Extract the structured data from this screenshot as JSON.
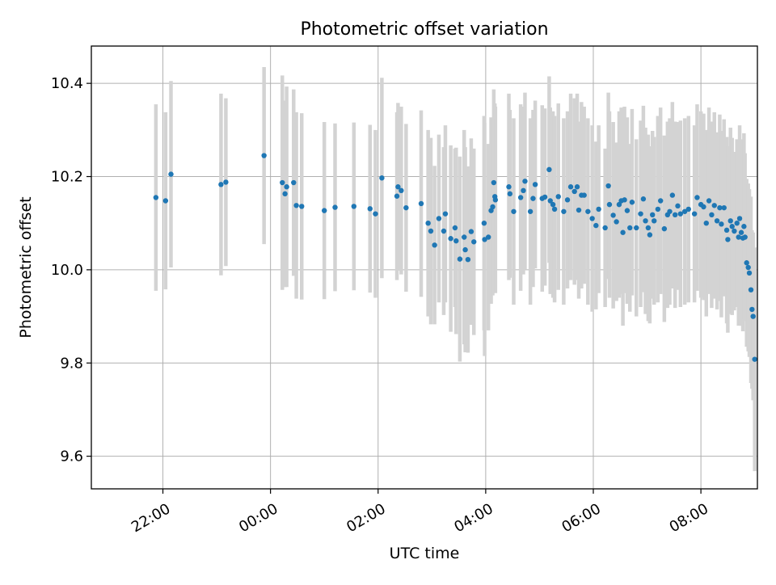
{
  "chart_data": {
    "type": "scatter",
    "title": "Photometric offset variation",
    "xlabel": "UTC time",
    "ylabel": "Photometric offset",
    "x_unit": "hours (UTC, continuing past midnight)",
    "xlim": [
      20.67,
      33.05
    ],
    "ylim": [
      9.53,
      10.48
    ],
    "x_ticks": [
      {
        "value": 22,
        "label": "22:00"
      },
      {
        "value": 24,
        "label": "00:00"
      },
      {
        "value": 26,
        "label": "02:00"
      },
      {
        "value": 28,
        "label": "04:00"
      },
      {
        "value": 30,
        "label": "06:00"
      },
      {
        "value": 32,
        "label": "08:00"
      }
    ],
    "y_ticks": [
      {
        "value": 9.6,
        "label": "9.6"
      },
      {
        "value": 9.8,
        "label": "9.8"
      },
      {
        "value": 10.0,
        "label": "10.0"
      },
      {
        "value": 10.2,
        "label": "10.2"
      },
      {
        "value": 10.4,
        "label": "10.4"
      }
    ],
    "grid": true,
    "colors": {
      "points": "#1f77b4",
      "errorbars": "#d3d3d3",
      "grid": "#b0b0b0"
    },
    "points": [
      [
        21.87,
        10.155,
        0.2
      ],
      [
        22.05,
        10.148,
        0.19
      ],
      [
        22.15,
        10.205,
        0.2
      ],
      [
        23.08,
        10.183,
        0.195
      ],
      [
        23.17,
        10.188,
        0.18
      ],
      [
        23.88,
        10.245,
        0.19
      ],
      [
        24.22,
        10.187,
        0.23
      ],
      [
        24.3,
        10.178,
        0.215
      ],
      [
        24.27,
        10.163,
        0.2
      ],
      [
        24.43,
        10.187,
        0.2
      ],
      [
        24.48,
        10.138,
        0.2
      ],
      [
        24.58,
        10.136,
        0.2
      ],
      [
        25.0,
        10.127,
        0.19
      ],
      [
        25.2,
        10.134,
        0.18
      ],
      [
        25.55,
        10.136,
        0.18
      ],
      [
        25.85,
        10.131,
        0.18
      ],
      [
        25.95,
        10.12,
        0.18
      ],
      [
        26.07,
        10.197,
        0.215
      ],
      [
        26.37,
        10.178,
        0.18
      ],
      [
        26.43,
        10.17,
        0.18
      ],
      [
        26.35,
        10.158,
        0.18
      ],
      [
        26.52,
        10.133,
        0.18
      ],
      [
        26.8,
        10.142,
        0.2
      ],
      [
        26.93,
        10.1,
        0.2
      ],
      [
        26.98,
        10.083,
        0.2
      ],
      [
        27.05,
        10.053,
        0.17
      ],
      [
        27.13,
        10.11,
        0.18
      ],
      [
        27.25,
        10.12,
        0.19
      ],
      [
        27.22,
        10.083,
        0.18
      ],
      [
        27.35,
        10.067,
        0.2
      ],
      [
        27.43,
        10.09,
        0.17
      ],
      [
        27.45,
        10.062,
        0.2
      ],
      [
        27.52,
        10.023,
        0.22
      ],
      [
        27.6,
        10.07,
        0.23
      ],
      [
        27.62,
        10.043,
        0.22
      ],
      [
        27.67,
        10.022,
        0.2
      ],
      [
        27.73,
        10.082,
        0.2
      ],
      [
        27.78,
        10.06,
        0.2
      ],
      [
        27.97,
        10.1,
        0.23
      ],
      [
        27.98,
        10.065,
        0.25
      ],
      [
        28.05,
        10.07,
        0.2
      ],
      [
        28.1,
        10.127,
        0.2
      ],
      [
        28.15,
        10.187,
        0.2
      ],
      [
        28.17,
        10.157,
        0.2
      ],
      [
        28.18,
        10.15,
        0.2
      ],
      [
        28.13,
        10.135,
        0.19
      ],
      [
        28.43,
        10.178,
        0.2
      ],
      [
        28.45,
        10.163,
        0.18
      ],
      [
        28.52,
        10.125,
        0.2
      ],
      [
        28.65,
        10.155,
        0.2
      ],
      [
        28.7,
        10.17,
        0.18
      ],
      [
        28.73,
        10.19,
        0.19
      ],
      [
        28.83,
        10.125,
        0.2
      ],
      [
        28.88,
        10.153,
        0.19
      ],
      [
        28.92,
        10.183,
        0.18
      ],
      [
        29.05,
        10.153,
        0.2
      ],
      [
        29.1,
        10.156,
        0.19
      ],
      [
        29.18,
        10.215,
        0.2
      ],
      [
        29.2,
        10.148,
        0.2
      ],
      [
        29.25,
        10.14,
        0.2
      ],
      [
        29.28,
        10.13,
        0.2
      ],
      [
        29.35,
        10.157,
        0.2
      ],
      [
        29.45,
        10.125,
        0.2
      ],
      [
        29.52,
        10.15,
        0.19
      ],
      [
        29.58,
        10.178,
        0.2
      ],
      [
        29.65,
        10.168,
        0.2
      ],
      [
        29.7,
        10.178,
        0.2
      ],
      [
        29.73,
        10.128,
        0.19
      ],
      [
        29.78,
        10.16,
        0.2
      ],
      [
        29.83,
        10.16,
        0.19
      ],
      [
        29.9,
        10.125,
        0.2
      ],
      [
        29.98,
        10.11,
        0.2
      ],
      [
        30.05,
        10.095,
        0.18
      ],
      [
        30.1,
        10.13,
        0.18
      ],
      [
        30.22,
        10.09,
        0.17
      ],
      [
        30.28,
        10.18,
        0.2
      ],
      [
        30.3,
        10.14,
        0.2
      ],
      [
        30.37,
        10.117,
        0.2
      ],
      [
        30.43,
        10.103,
        0.17
      ],
      [
        30.48,
        10.14,
        0.2
      ],
      [
        30.52,
        10.148,
        0.2
      ],
      [
        30.55,
        10.08,
        0.2
      ],
      [
        30.58,
        10.15,
        0.2
      ],
      [
        30.63,
        10.127,
        0.2
      ],
      [
        30.68,
        10.09,
        0.18
      ],
      [
        30.72,
        10.145,
        0.2
      ],
      [
        30.8,
        10.09,
        0.19
      ],
      [
        30.88,
        10.12,
        0.2
      ],
      [
        30.93,
        10.152,
        0.2
      ],
      [
        30.97,
        10.105,
        0.2
      ],
      [
        31.02,
        10.09,
        0.2
      ],
      [
        31.05,
        10.075,
        0.19
      ],
      [
        31.1,
        10.118,
        0.18
      ],
      [
        31.13,
        10.105,
        0.18
      ],
      [
        31.2,
        10.13,
        0.2
      ],
      [
        31.25,
        10.148,
        0.2
      ],
      [
        31.32,
        10.088,
        0.2
      ],
      [
        31.38,
        10.118,
        0.2
      ],
      [
        31.42,
        10.125,
        0.2
      ],
      [
        31.47,
        10.16,
        0.2
      ],
      [
        31.52,
        10.118,
        0.2
      ],
      [
        31.57,
        10.137,
        0.18
      ],
      [
        31.62,
        10.12,
        0.2
      ],
      [
        31.7,
        10.125,
        0.2
      ],
      [
        31.77,
        10.13,
        0.2
      ],
      [
        31.88,
        10.12,
        0.19
      ],
      [
        31.93,
        10.155,
        0.2
      ],
      [
        32.0,
        10.14,
        0.2
      ],
      [
        32.05,
        10.135,
        0.2
      ],
      [
        32.1,
        10.1,
        0.2
      ],
      [
        32.15,
        10.148,
        0.2
      ],
      [
        32.2,
        10.118,
        0.2
      ],
      [
        32.25,
        10.138,
        0.2
      ],
      [
        32.3,
        10.105,
        0.19
      ],
      [
        32.35,
        10.133,
        0.2
      ],
      [
        32.38,
        10.098,
        0.2
      ],
      [
        32.43,
        10.133,
        0.19
      ],
      [
        32.48,
        10.085,
        0.2
      ],
      [
        32.5,
        10.065,
        0.2
      ],
      [
        32.55,
        10.105,
        0.2
      ],
      [
        32.58,
        10.093,
        0.19
      ],
      [
        32.62,
        10.083,
        0.17
      ],
      [
        32.67,
        10.1,
        0.18
      ],
      [
        32.7,
        10.07,
        0.19
      ],
      [
        32.72,
        10.11,
        0.2
      ],
      [
        32.75,
        10.08,
        0.2
      ],
      [
        32.78,
        10.068,
        0.2
      ],
      [
        32.8,
        10.093,
        0.2
      ],
      [
        32.82,
        10.07,
        0.18
      ],
      [
        32.85,
        10.015,
        0.18
      ],
      [
        32.88,
        10.005,
        0.18
      ],
      [
        32.9,
        9.993,
        0.18
      ],
      [
        32.93,
        9.957,
        0.2
      ],
      [
        32.95,
        9.915,
        0.17
      ],
      [
        32.97,
        9.9,
        0.18
      ],
      [
        33.0,
        9.808,
        0.24
      ]
    ]
  }
}
